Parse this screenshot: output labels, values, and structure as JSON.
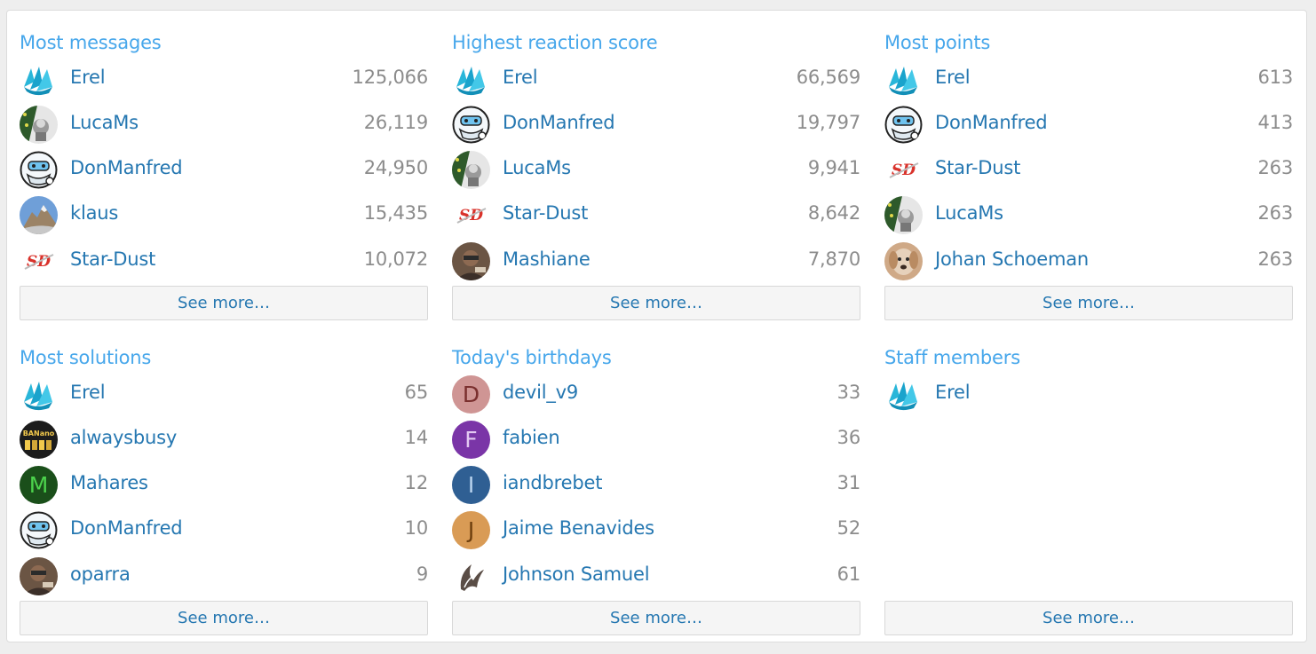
{
  "blocks": [
    {
      "title": "Most messages",
      "see_more": "See more…",
      "rows": [
        {
          "name": "Erel",
          "value": "125,066",
          "avatar": "erel-logo-avatar"
        },
        {
          "name": "LucaMs",
          "value": "26,119",
          "avatar": "lucams-avatar"
        },
        {
          "name": "DonManfred",
          "value": "24,950",
          "avatar": "donmanfred-avatar"
        },
        {
          "name": "klaus",
          "value": "15,435",
          "avatar": "mountain-photo-avatar"
        },
        {
          "name": "Star-Dust",
          "value": "10,072",
          "avatar": "sd-logo-avatar"
        }
      ]
    },
    {
      "title": "Highest reaction score",
      "see_more": "See more…",
      "rows": [
        {
          "name": "Erel",
          "value": "66,569",
          "avatar": "erel-logo-avatar"
        },
        {
          "name": "DonManfred",
          "value": "19,797",
          "avatar": "donmanfred-avatar"
        },
        {
          "name": "LucaMs",
          "value": "9,941",
          "avatar": "lucams-avatar"
        },
        {
          "name": "Star-Dust",
          "value": "8,642",
          "avatar": "sd-logo-avatar"
        },
        {
          "name": "Mashiane",
          "value": "7,870",
          "avatar": "person-photo-avatar"
        }
      ]
    },
    {
      "title": "Most points",
      "see_more": "See more…",
      "rows": [
        {
          "name": "Erel",
          "value": "613",
          "avatar": "erel-logo-avatar"
        },
        {
          "name": "DonManfred",
          "value": "413",
          "avatar": "donmanfred-avatar"
        },
        {
          "name": "Star-Dust",
          "value": "263",
          "avatar": "sd-logo-avatar"
        },
        {
          "name": "LucaMs",
          "value": "263",
          "avatar": "lucams-avatar"
        },
        {
          "name": "Johan Schoeman",
          "value": "263",
          "avatar": "dog-photo-avatar"
        }
      ]
    },
    {
      "title": "Most solutions",
      "see_more": "See more…",
      "rows": [
        {
          "name": "Erel",
          "value": "65",
          "avatar": "erel-logo-avatar"
        },
        {
          "name": "alwaysbusy",
          "value": "14",
          "avatar": "banano-avatar"
        },
        {
          "name": "Mahares",
          "value": "12",
          "avatar": "letter-avatar",
          "letter": "M",
          "bg": "#1a4f1a",
          "fg": "#4cd34c"
        },
        {
          "name": "DonManfred",
          "value": "10",
          "avatar": "donmanfred-avatar"
        },
        {
          "name": "oparra",
          "value": "9",
          "avatar": "person-photo-avatar"
        }
      ]
    },
    {
      "title": "Today's birthdays",
      "see_more": "See more…",
      "rows": [
        {
          "name": "devil_v9",
          "value": "33",
          "avatar": "letter-avatar",
          "letter": "D",
          "bg": "#cf9594",
          "fg": "#7a2f2e"
        },
        {
          "name": "fabien",
          "value": "36",
          "avatar": "letter-avatar",
          "letter": "F",
          "bg": "#7a35a7",
          "fg": "#e3c8f2"
        },
        {
          "name": "iandbrebet",
          "value": "31",
          "avatar": "letter-avatar",
          "letter": "I",
          "bg": "#2f5f93",
          "fg": "#b9d3ee"
        },
        {
          "name": "Jaime Benavides",
          "value": "52",
          "avatar": "letter-avatar",
          "letter": "J",
          "bg": "#d99b55",
          "fg": "#6e3f0e"
        },
        {
          "name": "Johnson Samuel",
          "value": "61",
          "avatar": "flourish-avatar"
        }
      ]
    },
    {
      "title": "Staff members",
      "see_more": "See more…",
      "rows": [
        {
          "name": "Erel",
          "value": "",
          "avatar": "erel-logo-avatar"
        }
      ]
    }
  ],
  "colors": {
    "title": "#47a7eb",
    "link": "#2577b1",
    "value": "#8c8c8c"
  }
}
